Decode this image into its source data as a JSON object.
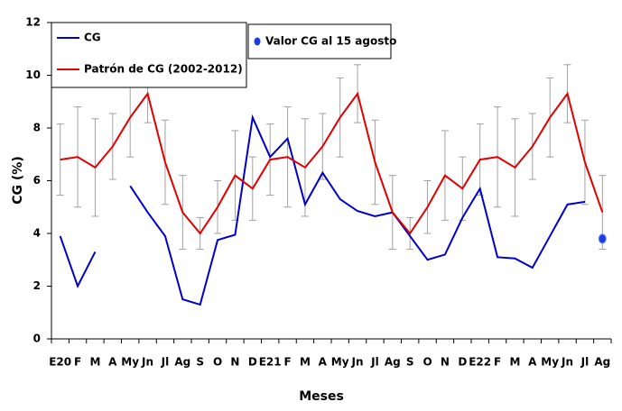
{
  "chart_data": {
    "type": "line",
    "x_label": "Meses",
    "y_label": "CG (%)",
    "categories": [
      "E20",
      "F",
      "M",
      "A",
      "My",
      "Jn",
      "Jl",
      "Ag",
      "S",
      "O",
      "N",
      "D",
      "E21",
      "F",
      "M",
      "A",
      "My",
      "Jn",
      "Jl",
      "Ag",
      "S",
      "O",
      "N",
      "D",
      "E22",
      "F",
      "M",
      "A",
      "My",
      "Jn",
      "Jl",
      "Ag"
    ],
    "ylim": [
      0,
      12
    ],
    "yticks": [
      0,
      2,
      4,
      6,
      8,
      10,
      12
    ],
    "series": [
      {
        "name": "CG",
        "color": "#0000cc",
        "values": [
          3.9,
          2.0,
          3.3,
          null,
          5.8,
          4.8,
          3.9,
          1.5,
          1.3,
          3.75,
          3.95,
          8.4,
          6.9,
          7.6,
          5.1,
          6.3,
          5.3,
          4.85,
          4.65,
          4.8,
          3.9,
          3.0,
          3.2,
          4.6,
          5.7,
          3.1,
          3.05,
          2.7,
          3.9,
          5.1,
          5.2,
          null
        ]
      },
      {
        "name": "Patrón  de CG (2002-2012)",
        "color": "#e00000",
        "error_color": "#a0a0a0",
        "values": [
          6.8,
          6.9,
          6.5,
          7.3,
          8.4,
          9.3,
          6.7,
          4.8,
          4.0,
          5.0,
          6.2,
          5.7,
          6.8,
          6.9,
          6.5,
          7.3,
          8.4,
          9.3,
          6.7,
          4.8,
          4.0,
          5.0,
          6.2,
          5.7,
          6.8,
          6.9,
          6.5,
          7.3,
          8.4,
          9.3,
          6.7,
          4.8
        ],
        "errors": [
          1.35,
          1.9,
          1.85,
          1.25,
          1.5,
          1.1,
          1.6,
          1.4,
          0.6,
          1.0,
          1.7,
          1.2,
          1.35,
          1.9,
          1.85,
          1.25,
          1.5,
          1.1,
          1.6,
          1.4,
          0.6,
          1.0,
          1.7,
          1.2,
          1.35,
          1.9,
          1.85,
          1.25,
          1.5,
          1.1,
          1.6,
          1.4
        ]
      },
      {
        "name": "Valor CG al 15 agosto",
        "color": "#1a3de0",
        "marker": "dot",
        "values": [
          null,
          null,
          null,
          null,
          null,
          null,
          null,
          null,
          null,
          null,
          null,
          null,
          null,
          null,
          null,
          null,
          null,
          null,
          null,
          null,
          null,
          null,
          null,
          null,
          null,
          null,
          null,
          null,
          null,
          null,
          null,
          3.8
        ]
      }
    ]
  }
}
